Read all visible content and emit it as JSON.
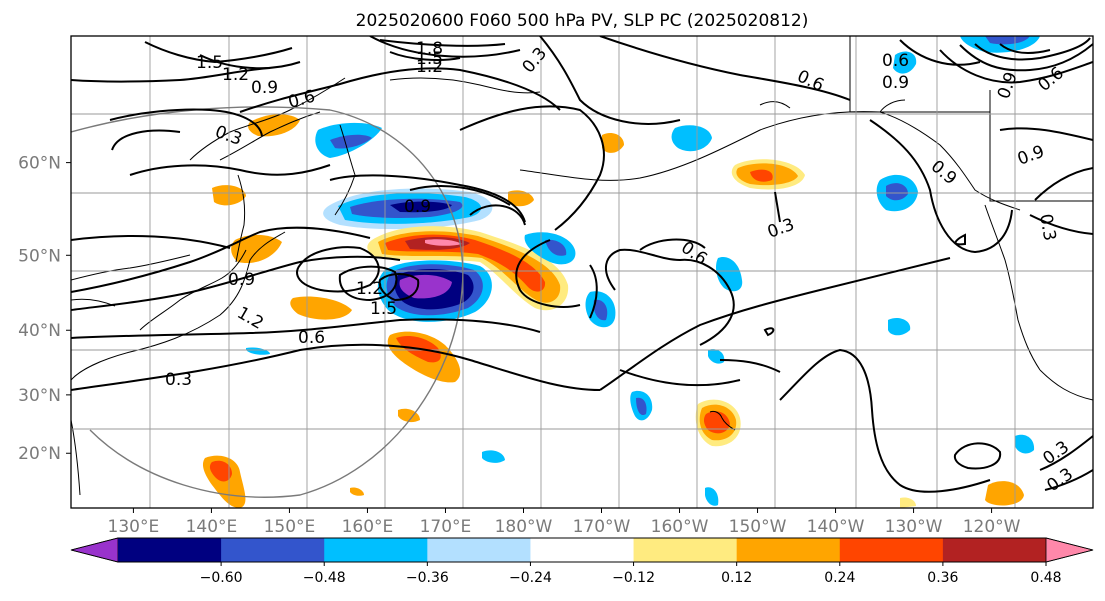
{
  "chart_data": {
    "type": "contour-map",
    "title": "2025020600 F060 500 hPa PV, SLP PC (2025020812)",
    "x_tick_labels": [
      "130°E",
      "140°E",
      "150°E",
      "160°E",
      "170°E",
      "180°W",
      "170°W",
      "160°W",
      "150°W",
      "140°W",
      "130°W",
      "120°W"
    ],
    "y_tick_labels": [
      "60°N",
      "50°N",
      "40°N",
      "30°N",
      "20°N"
    ],
    "x_ticks_lon": [
      130,
      140,
      150,
      160,
      170,
      180,
      190,
      200,
      210,
      220,
      230,
      240
    ],
    "y_ticks_lat": [
      60,
      50,
      40,
      30,
      20
    ],
    "lon_range": [
      122,
      253
    ],
    "lat_range": [
      10,
      70
    ],
    "grid": true,
    "colorbar": {
      "ticks": [
        "−0.60",
        "−0.48",
        "−0.36",
        "−0.24",
        "−0.12",
        "0.12",
        "0.24",
        "0.36",
        "0.48",
        "0.60"
      ],
      "levels": [
        -0.6,
        -0.48,
        -0.36,
        -0.24,
        -0.12,
        0.12,
        0.24,
        0.36,
        0.48,
        0.6
      ],
      "colors": [
        "#9933cc",
        "#000080",
        "#3355cc",
        "#00bfff",
        "#b3e0ff",
        "#ffffff",
        "#ffeb80",
        "#ffa500",
        "#ff4500",
        "#b22222",
        "#ff88aa"
      ],
      "extend": "both"
    },
    "contour_labels": [
      "1.5",
      "1.2",
      "0.9",
      "0.6",
      "0.3",
      "1.8",
      "1.5",
      "1.2",
      "0.3",
      "0.6",
      "0.6",
      "0.9",
      "0.6",
      "0.9",
      "0.3",
      "0.9",
      "1.2",
      "1.5",
      "1.2",
      "0.9",
      "0.6",
      "0.3",
      "0.6",
      "0.3",
      "0.9",
      "1.2",
      "0.6",
      "0.3",
      "0.3",
      "0.9",
      "0.9",
      "0.3"
    ],
    "pv_features": [
      {
        "name": "negative-core",
        "lon": 170,
        "lat": 36,
        "value": -0.66
      },
      {
        "name": "negative-band",
        "lon": 164,
        "lat": 48,
        "value": -0.5
      },
      {
        "name": "positive-band",
        "lon": 174,
        "lat": 41,
        "value": 0.55
      },
      {
        "name": "positive-south",
        "lon": 164,
        "lat": 29,
        "value": 0.4
      },
      {
        "name": "positive-hawaii",
        "lon": 204,
        "lat": 21,
        "value": 0.4
      }
    ]
  }
}
